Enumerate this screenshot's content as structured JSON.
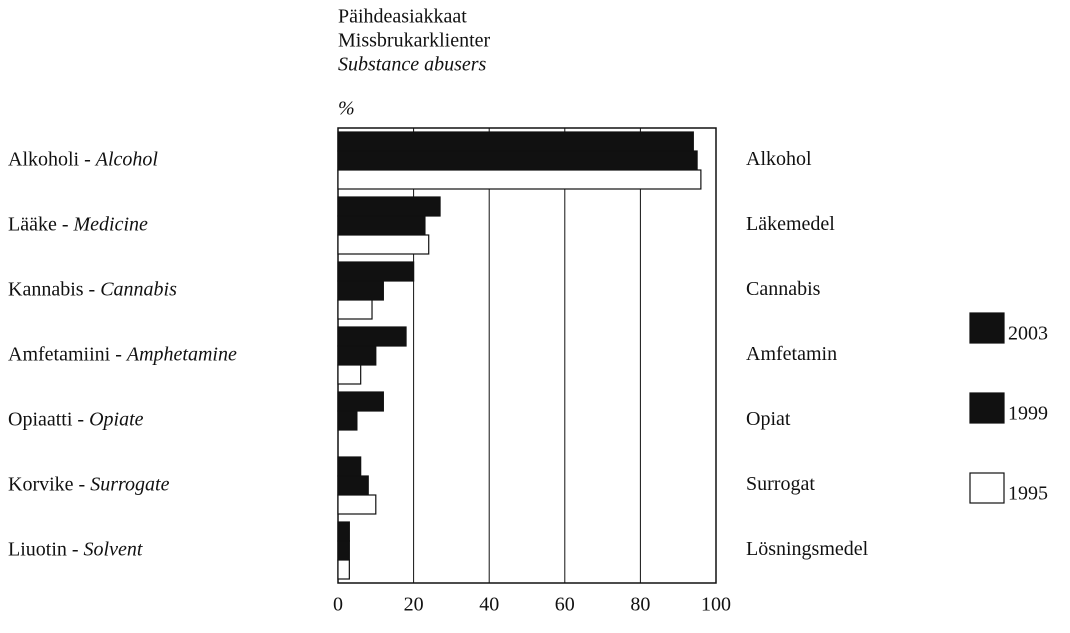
{
  "chart_data": {
    "type": "hbar",
    "title": [
      "Päihdeasiakkaat",
      "Missbrukarklienter",
      "Substance abusers"
    ],
    "unit_label": "%",
    "categories": [
      "Alkoholi - Alcohol",
      "Lääke - Medicine",
      "Kannabis - Cannabis",
      "Amfetamiini - Amphetamine",
      "Opiaatti - Opiate",
      "Korvike - Surrogate",
      "Liuotin - Solvent"
    ],
    "categories_sv": [
      "Alkohol",
      "Läkemedel",
      "Cannabis",
      "Amfetamin",
      "Opiat",
      "Surrogat",
      "Lösningsmedel"
    ],
    "series": [
      {
        "name": "2003",
        "color": "#111111",
        "values": [
          94,
          27,
          20,
          18,
          12,
          6,
          3
        ]
      },
      {
        "name": "1999",
        "color": "#111111",
        "values": [
          95,
          23,
          12,
          10,
          5,
          8,
          3
        ]
      },
      {
        "name": "1995",
        "color": "#ffffff",
        "values": [
          96,
          24,
          9,
          6,
          0,
          10,
          3
        ]
      }
    ],
    "xlim": [
      0,
      100
    ],
    "xticks": [
      0,
      20,
      40,
      60,
      80,
      100
    ],
    "grid": true,
    "legend": "right"
  }
}
